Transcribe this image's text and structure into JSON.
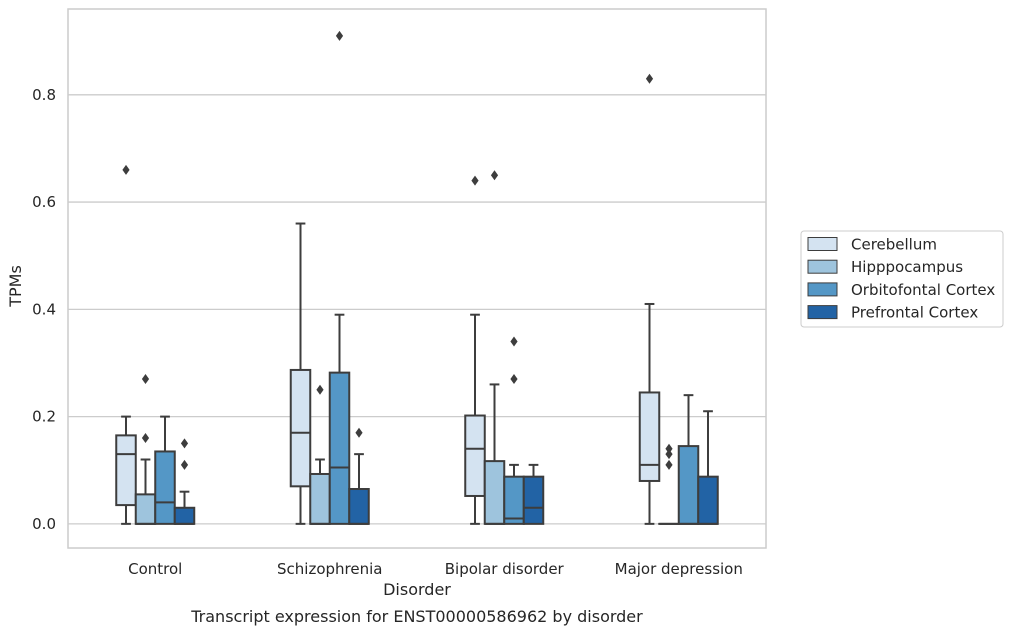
{
  "chart_data": {
    "type": "box",
    "categories": [
      "Control",
      "Schizophrenia",
      "Bipolar disorder",
      "Major depression"
    ],
    "xlabel": "Disorder",
    "ylabel": "TPMs",
    "caption": "Transcript expression for ENST00000586962 by disorder",
    "ylim": [
      -0.045,
      0.96
    ],
    "yticks": [
      0.0,
      0.2,
      0.4,
      0.6,
      0.8
    ],
    "ytick_labels": [
      "0.0",
      "0.2",
      "0.4",
      "0.6",
      "0.8"
    ],
    "grid": "horizontal",
    "legend_position": "right",
    "series": [
      {
        "name": "Cerebellum",
        "color": "#d4e3f1",
        "boxes": [
          {
            "whislo": 0.0,
            "q1": 0.035,
            "med": 0.13,
            "q3": 0.165,
            "whishi": 0.2,
            "fliers": [
              0.66
            ]
          },
          {
            "whislo": 0.0,
            "q1": 0.07,
            "med": 0.17,
            "q3": 0.287,
            "whishi": 0.56,
            "fliers": []
          },
          {
            "whislo": 0.0,
            "q1": 0.052,
            "med": 0.14,
            "q3": 0.202,
            "whishi": 0.39,
            "fliers": [
              0.64
            ]
          },
          {
            "whislo": 0.0,
            "q1": 0.08,
            "med": 0.11,
            "q3": 0.245,
            "whishi": 0.41,
            "fliers": [
              0.83
            ]
          }
        ]
      },
      {
        "name": "Hipppocampus",
        "color": "#9ec4dd",
        "boxes": [
          {
            "whislo": 0.0,
            "q1": 0.0,
            "med": 0.0,
            "q3": 0.055,
            "whishi": 0.12,
            "fliers": [
              0.16,
              0.27
            ]
          },
          {
            "whislo": 0.0,
            "q1": 0.0,
            "med": 0.0,
            "q3": 0.093,
            "whishi": 0.12,
            "fliers": [
              0.25
            ]
          },
          {
            "whislo": 0.0,
            "q1": 0.0,
            "med": 0.0,
            "q3": 0.117,
            "whishi": 0.26,
            "fliers": [
              0.65
            ]
          },
          {
            "whislo": 0.0,
            "q1": 0.0,
            "med": 0.0,
            "q3": 0.0,
            "whishi": 0.0,
            "fliers": [
              0.11,
              0.13,
              0.14
            ]
          }
        ]
      },
      {
        "name": "Orbitofontal Cortex",
        "color": "#5497c6",
        "boxes": [
          {
            "whislo": 0.0,
            "q1": 0.0,
            "med": 0.04,
            "q3": 0.135,
            "whishi": 0.2,
            "fliers": []
          },
          {
            "whislo": 0.0,
            "q1": 0.0,
            "med": 0.105,
            "q3": 0.282,
            "whishi": 0.39,
            "fliers": [
              0.91
            ]
          },
          {
            "whislo": 0.0,
            "q1": 0.0,
            "med": 0.01,
            "q3": 0.088,
            "whishi": 0.11,
            "fliers": [
              0.27,
              0.34
            ]
          },
          {
            "whislo": 0.0,
            "q1": 0.0,
            "med": 0.0,
            "q3": 0.145,
            "whishi": 0.24,
            "fliers": []
          }
        ]
      },
      {
        "name": "Prefrontal Cortex",
        "color": "#2263a5",
        "boxes": [
          {
            "whislo": 0.0,
            "q1": 0.0,
            "med": 0.0,
            "q3": 0.03,
            "whishi": 0.06,
            "fliers": [
              0.11,
              0.15
            ]
          },
          {
            "whislo": 0.0,
            "q1": 0.0,
            "med": 0.0,
            "q3": 0.065,
            "whishi": 0.13,
            "fliers": [
              0.17
            ]
          },
          {
            "whislo": 0.0,
            "q1": 0.0,
            "med": 0.03,
            "q3": 0.088,
            "whishi": 0.11,
            "fliers": []
          },
          {
            "whislo": 0.0,
            "q1": 0.0,
            "med": 0.0,
            "q3": 0.088,
            "whishi": 0.21,
            "fliers": []
          }
        ]
      }
    ]
  }
}
